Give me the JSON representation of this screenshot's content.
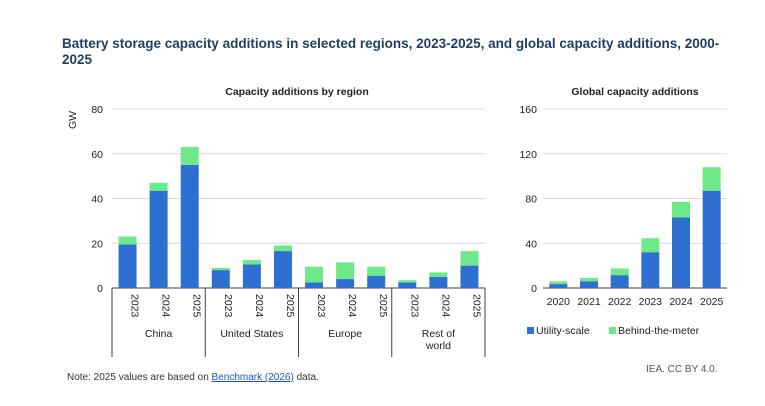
{
  "title": "Battery storage capacity additions in selected regions, 2023-2025, and global capacity additions, 2000-2025",
  "note": {
    "prefix": "Note: 2025 values are based on ",
    "link": "Benchmark (2026)",
    "suffix": " data."
  },
  "credit": "IEA. CC BY 4.0.",
  "colors": {
    "utility": "#2e6fd2",
    "behind": "#6ee98a",
    "grid": "#d9d9d9",
    "axis": "#404040"
  },
  "chart_data": [
    {
      "type": "bar",
      "stacked": true,
      "title": "Capacity additions by region",
      "ylabel": "GW",
      "ylim": [
        0,
        80
      ],
      "yticks": [
        0,
        20,
        40,
        60,
        80
      ],
      "grid": true,
      "groups": [
        {
          "label": [
            "China"
          ],
          "years": [
            "2023",
            "2024",
            "2025"
          ],
          "utility": [
            19.5,
            43.5,
            55
          ],
          "behind": [
            3.5,
            3.5,
            8
          ]
        },
        {
          "label": [
            "United States"
          ],
          "years": [
            "2023",
            "2024",
            "2025"
          ],
          "utility": [
            8,
            10.5,
            16.5
          ],
          "behind": [
            1,
            2,
            2.5
          ]
        },
        {
          "label": [
            "Europe"
          ],
          "years": [
            "2023",
            "2024",
            "2025"
          ],
          "utility": [
            2.5,
            4,
            5.5
          ],
          "behind": [
            7,
            7.5,
            4
          ]
        },
        {
          "label": [
            "Rest of",
            "world"
          ],
          "years": [
            "2023",
            "2024",
            "2025"
          ],
          "utility": [
            2.5,
            5,
            10
          ],
          "behind": [
            1,
            2,
            6.5
          ]
        }
      ]
    },
    {
      "type": "bar",
      "stacked": true,
      "title": "Global capacity additions",
      "ylim": [
        0,
        160
      ],
      "yticks": [
        0,
        40,
        80,
        120,
        160
      ],
      "grid": true,
      "categories": [
        "2020",
        "2021",
        "2022",
        "2023",
        "2024",
        "2025"
      ],
      "legend_position": "bottom",
      "series": [
        {
          "name": "Utility-scale",
          "values": [
            3.5,
            6,
            11.5,
            32,
            63,
            87
          ]
        },
        {
          "name": "Behind-the-meter",
          "values": [
            2.5,
            3,
            6,
            12.5,
            14,
            21
          ]
        }
      ]
    }
  ]
}
